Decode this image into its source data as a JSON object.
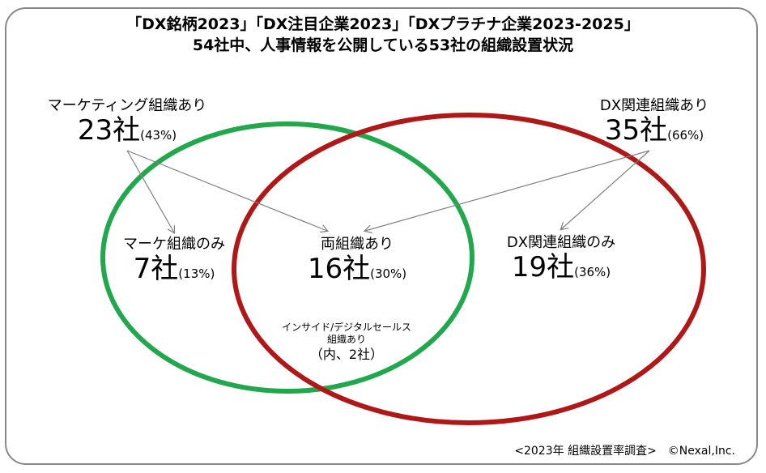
{
  "title": {
    "line1": "「DX銘柄2023」「DX注目企業2023」「DXプラチナ企業2023-2025」",
    "line2": "54社中、人事情報を公開している53社の組織設置状況"
  },
  "totals": {
    "marketing": {
      "name": "マーケティング組織あり",
      "count": "23社",
      "pct": "(43%)"
    },
    "dx": {
      "name": "DX関連組織あり",
      "count": "35社",
      "pct": "(66%)"
    }
  },
  "regions": {
    "marketing_only": {
      "name": "マーケ組織のみ",
      "count": "7社",
      "pct": "(13%)"
    },
    "both": {
      "name": "両組織あり",
      "count": "16社",
      "pct": "(30%)"
    },
    "dx_only": {
      "name": "DX関連組織のみ",
      "count": "19社",
      "pct": "(36%)"
    }
  },
  "sub_note": {
    "line1": "インサイド/デジタルセールス",
    "line2": "組織あり",
    "line3": "（内、2社）"
  },
  "footer": "<2023年 組織設置率調査>　©Nexal,Inc.",
  "colors": {
    "marketing_circle": "#21a84c",
    "dx_circle": "#b01818",
    "arrow": "#7f7f7f",
    "frame": "#888888"
  }
}
